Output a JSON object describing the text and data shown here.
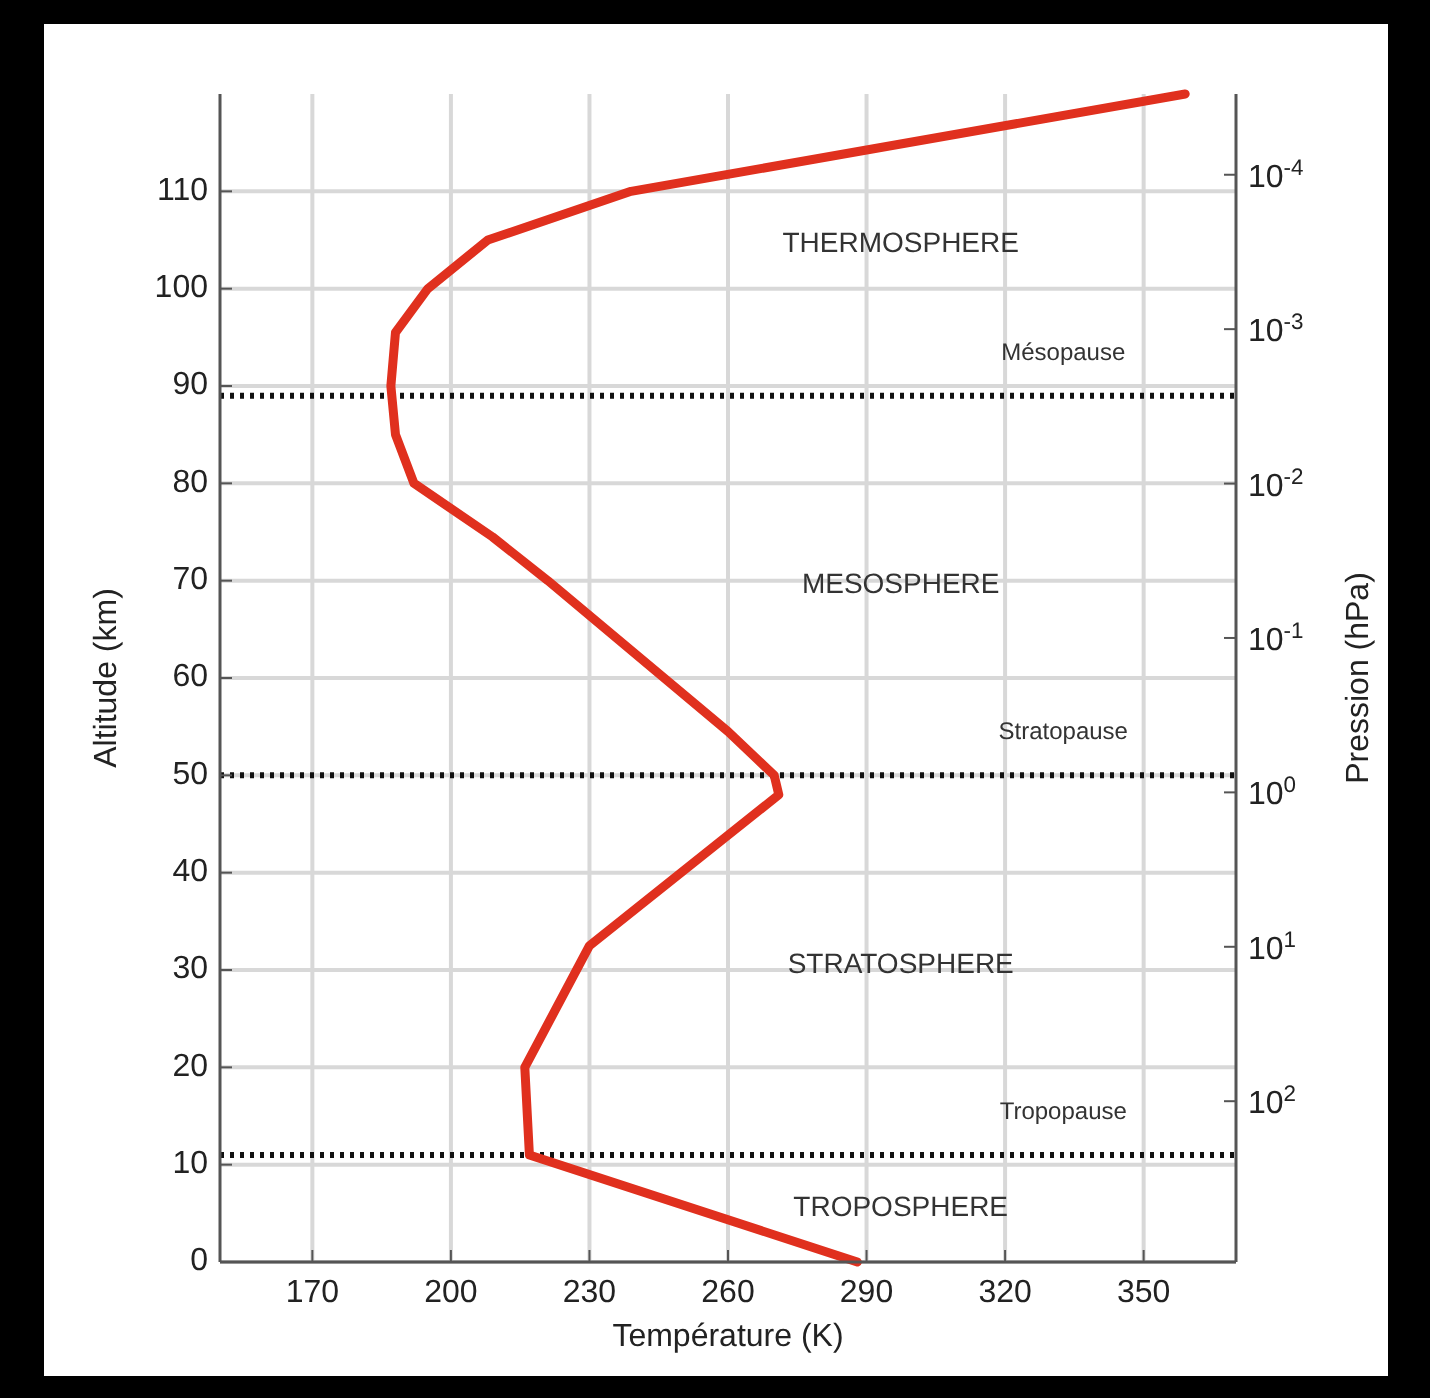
{
  "chart_data": {
    "type": "line",
    "xlabel": "Température (K)",
    "ylabel": "Altitude (km)",
    "y2label": "Pression (hPa)",
    "xlim": [
      150,
      370
    ],
    "xticks": [
      170,
      200,
      230,
      260,
      290,
      320,
      350
    ],
    "ylim": [
      0,
      120
    ],
    "yticks": [
      0,
      10,
      20,
      30,
      40,
      50,
      60,
      70,
      80,
      90,
      100,
      110
    ],
    "y2lim": [
      1100,
      3e-05
    ],
    "log": "y2",
    "y2ticks": [
      {
        "value": 100,
        "label": "10$^{2}$"
      },
      {
        "value": 10,
        "label": "10$^{1}$"
      },
      {
        "value": 1,
        "label": "10$^{0}$"
      },
      {
        "value": 0.1,
        "label": "10$^{-1}$"
      },
      {
        "value": 0.01,
        "label": "10$^{-2}$"
      },
      {
        "value": 0.001,
        "label": "10$^{-3}$"
      },
      {
        "value": 0.0001,
        "label": "10$^{-4}$"
      }
    ],
    "grid": true,
    "line_style": "solid",
    "marker": "none",
    "series": [
      {
        "color": "#e0301e",
        "x": [
          288,
          217,
          216,
          230,
          271,
          270,
          260,
          221,
          209,
          192,
          188,
          187,
          188,
          195,
          208,
          239,
          359
        ],
        "values": [
          0,
          11,
          20,
          32.5,
          48,
          50,
          54.5,
          70,
          74.5,
          80,
          85,
          90,
          95.5,
          100,
          105,
          110,
          120
        ]
      }
    ],
    "ref_lines": [
      {
        "axis": "y",
        "value": 11,
        "label": "Tropopause",
        "color": "#111111",
        "line_style": "dotted"
      },
      {
        "axis": "y",
        "value": 50,
        "label": "Stratopause",
        "color": "#111111",
        "line_style": "dotted"
      },
      {
        "axis": "y",
        "value": 89,
        "label": "Mésopause",
        "color": "#111111",
        "line_style": "dotted"
      }
    ],
    "annotations": [
      "TROPOSPHERE",
      "STRATOSPHERE",
      "MESOSPHERE",
      "THERMOSPHERE"
    ]
  }
}
